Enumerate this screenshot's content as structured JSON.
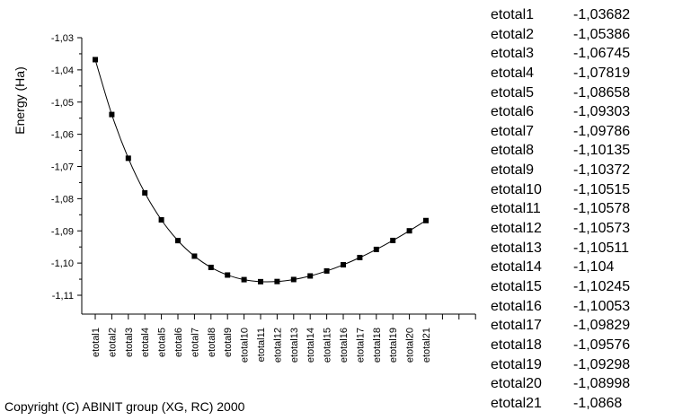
{
  "chart_data": {
    "type": "line",
    "title": "",
    "xlabel": "",
    "ylabel": "Energy (Ha)",
    "ylim": [
      -1.115,
      -1.025
    ],
    "yticks": [
      "-1,03",
      "-1,04",
      "-1,05",
      "-1,06",
      "-1,07",
      "-1,08",
      "-1,09",
      "-1,10",
      "-1,11"
    ],
    "ytick_values": [
      -1.03,
      -1.04,
      -1.05,
      -1.06,
      -1.07,
      -1.08,
      -1.09,
      -1.1,
      -1.11
    ],
    "categories": [
      "etotal1",
      "etotal2",
      "etotal3",
      "etotal4",
      "etotal5",
      "etotal6",
      "etotal7",
      "etotal8",
      "etotal9",
      "etotal10",
      "etotal11",
      "etotal12",
      "etotal13",
      "etotal14",
      "etotal15",
      "etotal16",
      "etotal17",
      "etotal18",
      "etotal19",
      "etotal20",
      "etotal21"
    ],
    "extra_x_ticks": 3,
    "series": [
      {
        "values": [
          -1.03682,
          -1.05386,
          -1.06745,
          -1.07819,
          -1.08658,
          -1.09303,
          -1.09786,
          -1.10135,
          -1.10372,
          -1.10515,
          -1.10578,
          -1.10573,
          -1.10511,
          -1.104,
          -1.10245,
          -1.10053,
          -1.09829,
          -1.09576,
          -1.09298,
          -1.08998,
          -1.0868
        ]
      }
    ],
    "grid": false,
    "legend": "none",
    "marker": "square"
  },
  "table": {
    "rows": [
      {
        "name": "etotal1",
        "value": "-1,03682"
      },
      {
        "name": "etotal2",
        "value": "-1,05386"
      },
      {
        "name": "etotal3",
        "value": "-1,06745"
      },
      {
        "name": "etotal4",
        "value": "-1,07819"
      },
      {
        "name": "etotal5",
        "value": "-1,08658"
      },
      {
        "name": "etotal6",
        "value": "-1,09303"
      },
      {
        "name": "etotal7",
        "value": "-1,09786"
      },
      {
        "name": "etotal8",
        "value": "-1,10135"
      },
      {
        "name": "etotal9",
        "value": "-1,10372"
      },
      {
        "name": "etotal10",
        "value": "-1,10515"
      },
      {
        "name": "etotal11",
        "value": "-1,10578"
      },
      {
        "name": "etotal12",
        "value": "-1,10573"
      },
      {
        "name": "etotal13",
        "value": "-1,10511"
      },
      {
        "name": "etotal14",
        "value": "-1,104"
      },
      {
        "name": "etotal15",
        "value": "-1,10245"
      },
      {
        "name": "etotal16",
        "value": "-1,10053"
      },
      {
        "name": "etotal17",
        "value": "-1,09829"
      },
      {
        "name": "etotal18",
        "value": "-1,09576"
      },
      {
        "name": "etotal19",
        "value": "-1,09298"
      },
      {
        "name": "etotal20",
        "value": "-1,08998"
      },
      {
        "name": "etotal21",
        "value": "-1,0868"
      }
    ]
  },
  "footer": {
    "copyright": "Copyright (C) ABINIT group (XG, RC) 2000"
  }
}
